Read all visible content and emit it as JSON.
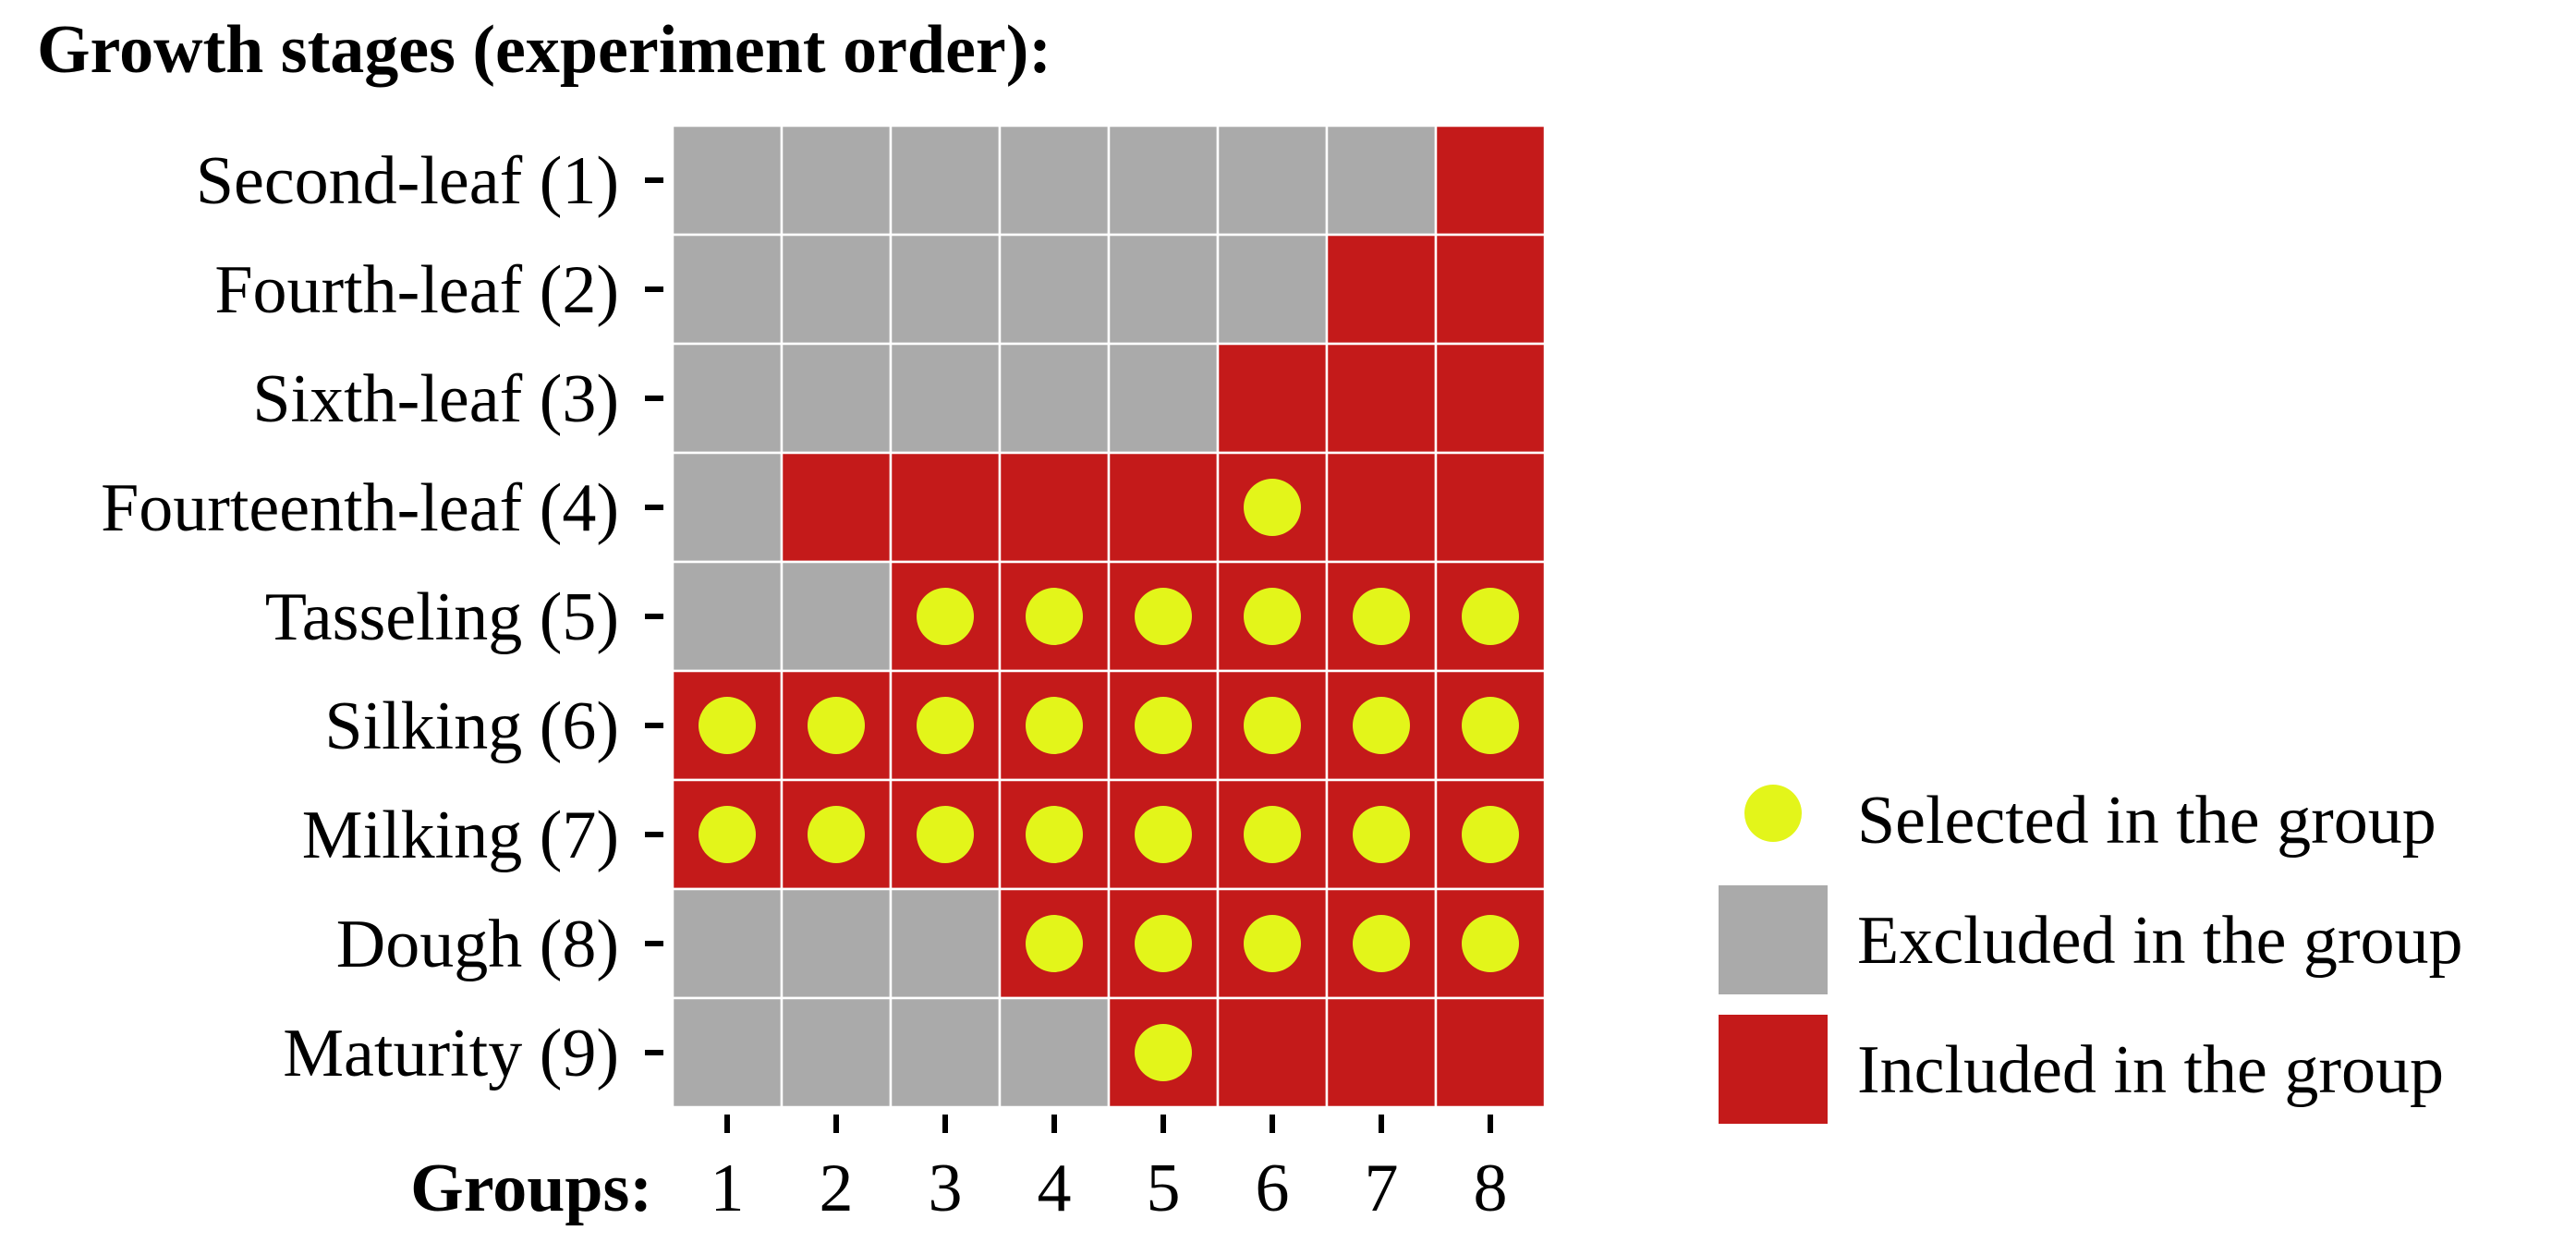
{
  "chart_data": {
    "type": "heatmap",
    "title": "Growth stages (experiment order):",
    "xlabel": "Groups:",
    "rows": [
      "Second-leaf (1)",
      "Fourth-leaf (2)",
      "Sixth-leaf (3)",
      "Fourteenth-leaf (4)",
      "Tasseling (5)",
      "Silking (6)",
      "Milking (7)",
      "Dough (8)",
      "Maturity (9)"
    ],
    "columns": [
      "1",
      "2",
      "3",
      "4",
      "5",
      "6",
      "7",
      "8"
    ],
    "cells": [
      [
        "excluded",
        "excluded",
        "excluded",
        "excluded",
        "excluded",
        "excluded",
        "excluded",
        "included"
      ],
      [
        "excluded",
        "excluded",
        "excluded",
        "excluded",
        "excluded",
        "excluded",
        "included",
        "included"
      ],
      [
        "excluded",
        "excluded",
        "excluded",
        "excluded",
        "excluded",
        "included",
        "included",
        "included"
      ],
      [
        "excluded",
        "included",
        "included",
        "included",
        "included",
        "included",
        "included",
        "included"
      ],
      [
        "excluded",
        "excluded",
        "included",
        "included",
        "included",
        "included",
        "included",
        "included"
      ],
      [
        "included",
        "included",
        "included",
        "included",
        "included",
        "included",
        "included",
        "included"
      ],
      [
        "included",
        "included",
        "included",
        "included",
        "included",
        "included",
        "included",
        "included"
      ],
      [
        "excluded",
        "excluded",
        "excluded",
        "included",
        "included",
        "included",
        "included",
        "included"
      ],
      [
        "excluded",
        "excluded",
        "excluded",
        "excluded",
        "included",
        "included",
        "included",
        "included"
      ]
    ],
    "selected": [
      [
        0,
        0,
        0,
        0,
        0,
        0,
        0,
        0
      ],
      [
        0,
        0,
        0,
        0,
        0,
        0,
        0,
        0
      ],
      [
        0,
        0,
        0,
        0,
        0,
        0,
        0,
        0
      ],
      [
        0,
        0,
        0,
        0,
        0,
        1,
        0,
        0
      ],
      [
        0,
        0,
        1,
        1,
        1,
        1,
        1,
        1
      ],
      [
        1,
        1,
        1,
        1,
        1,
        1,
        1,
        1
      ],
      [
        1,
        1,
        1,
        1,
        1,
        1,
        1,
        1
      ],
      [
        0,
        0,
        0,
        1,
        1,
        1,
        1,
        1
      ],
      [
        0,
        0,
        0,
        0,
        1,
        0,
        0,
        0
      ]
    ],
    "legend": [
      {
        "key": "selected",
        "label": "Selected in the group"
      },
      {
        "key": "excluded",
        "label": "Excluded in the group"
      },
      {
        "key": "included",
        "label": "Included in the group"
      }
    ],
    "legend_position": "right",
    "colors": {
      "excluded": "#aaaaaa",
      "included": "#c41a1a",
      "selected": "#e3f51a",
      "gridline": "#ffffff"
    }
  }
}
